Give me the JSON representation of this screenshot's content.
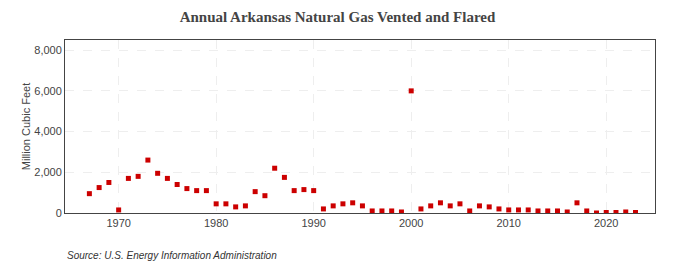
{
  "chart_data": {
    "type": "scatter",
    "title": "Annual Arkansas Natural Gas Vented and Flared",
    "ylabel": "Million Cubic Feet",
    "annotations": [
      "Source: U.S. Energy Information Administration"
    ],
    "x": [
      1967,
      1968,
      1969,
      1970,
      1971,
      1972,
      1973,
      1974,
      1975,
      1976,
      1977,
      1978,
      1979,
      1980,
      1981,
      1982,
      1983,
      1984,
      1985,
      1986,
      1987,
      1988,
      1989,
      1990,
      1991,
      1992,
      1993,
      1994,
      1995,
      1996,
      1997,
      1998,
      1999,
      2000,
      2001,
      2002,
      2003,
      2004,
      2005,
      2006,
      2007,
      2008,
      2009,
      2010,
      2011,
      2012,
      2013,
      2014,
      2015,
      2016,
      2017,
      2018,
      2019,
      2020,
      2021,
      2022,
      2023
    ],
    "values": [
      950,
      1250,
      1500,
      150,
      1700,
      1800,
      2600,
      1950,
      1700,
      1400,
      1200,
      1100,
      1100,
      450,
      450,
      300,
      350,
      1050,
      850,
      2200,
      1750,
      1100,
      1150,
      1100,
      200,
      350,
      450,
      500,
      350,
      100,
      100,
      100,
      50,
      6000,
      200,
      350,
      500,
      350,
      450,
      100,
      350,
      300,
      200,
      150,
      150,
      150,
      100,
      100,
      100,
      50,
      500,
      100,
      0,
      25,
      25,
      50,
      25
    ],
    "color": "#cc0000",
    "marker": "square",
    "xlim": [
      1964.5,
      2025
    ],
    "ylim": [
      0,
      8500
    ],
    "xticks": [
      1970,
      1980,
      1990,
      2000,
      2010,
      2020
    ],
    "yticks": [
      0,
      {
        "value": 2000,
        "label": "2,000"
      },
      {
        "value": 4000,
        "label": "4,000"
      },
      {
        "value": 6000,
        "label": "6,000"
      },
      {
        "value": 8000,
        "label": "8,000"
      }
    ],
    "grid": true
  }
}
